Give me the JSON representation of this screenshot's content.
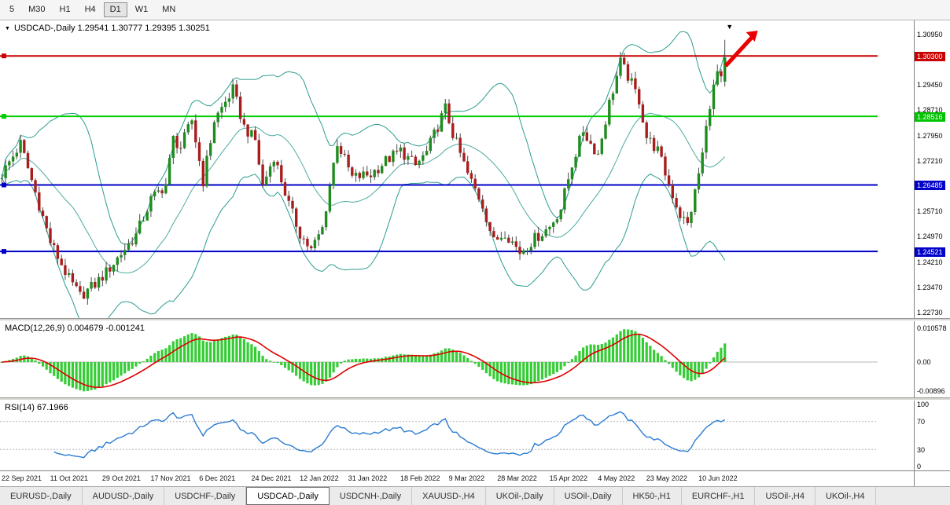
{
  "toolbar": {
    "timeframes": [
      "5",
      "M30",
      "H1",
      "H4",
      "D1",
      "W1",
      "MN"
    ],
    "selected": "D1"
  },
  "icons": {
    "chart_dropdown": "▼",
    "bar_marker": "▼"
  },
  "main_chart": {
    "title_text": "USDCAD-,Daily  1.29541 1.30777 1.29395 1.30251",
    "symbol": "USDCAD-",
    "period": "Daily",
    "ohlc": {
      "open": "1.29541",
      "high": "1.30777",
      "low": "1.29395",
      "close": "1.30251"
    },
    "price_range": {
      "max": 1.3135,
      "min": 1.2255
    },
    "price_axis_ticks": [
      {
        "label": "1.30950",
        "price": 1.3095
      },
      {
        "label": "1.29450",
        "price": 1.2945
      },
      {
        "label": "1.28710",
        "price": 1.2871
      },
      {
        "label": "1.27950",
        "price": 1.2795
      },
      {
        "label": "1.27210",
        "price": 1.2721
      },
      {
        "label": "1.25710",
        "price": 1.2571
      },
      {
        "label": "1.24970",
        "price": 1.2497
      },
      {
        "label": "1.24210",
        "price": 1.2421
      },
      {
        "label": "1.23470",
        "price": 1.2347
      },
      {
        "label": "1.22730",
        "price": 1.2273
      }
    ],
    "hlines": [
      {
        "price": 1.303,
        "label": "1.30300",
        "color": "#c80000",
        "label_bg": "#c80000",
        "label_fg": "#ffffff"
      },
      {
        "price": 1.28516,
        "label": "1.28516",
        "color": "#00ce00",
        "label_bg": "#00c400",
        "label_fg": "#ffffff"
      },
      {
        "price": 1.26485,
        "label": "1.26485",
        "color": "#0000c8",
        "label_bg": "#0000c8",
        "label_fg": "#ffffff"
      },
      {
        "price": 1.24521,
        "label": "1.24521",
        "color": "#0000c8",
        "label_bg": "#0000c8",
        "label_fg": "#ffffff"
      }
    ],
    "trend_arrow": {
      "color": "#ea0000"
    },
    "colors": {
      "bull": "#1e8c1e",
      "bear": "#a81d1d",
      "wick": "#4a4a4a",
      "bollinger": "#2c9c8f"
    }
  },
  "macd_panel": {
    "label": "MACD(12,26,9) 0.004679 -0.001241",
    "axis": [
      {
        "label": "0.010578",
        "value": 0.010578
      },
      {
        "label": "0.00",
        "value": 0
      },
      {
        "label": "-0.00896",
        "value": -0.00896
      }
    ],
    "range": {
      "max": 0.0127,
      "min": -0.011
    },
    "colors": {
      "histogram": "#35cc35",
      "signal": "#dd0000",
      "zero_line": "#b8b8b8"
    }
  },
  "rsi_panel": {
    "label": "RSI(14) 67.1966",
    "axis": [
      {
        "label": "100",
        "value": 100
      },
      {
        "label": "70",
        "value": 70
      },
      {
        "label": "30",
        "value": 30
      },
      {
        "label": "0",
        "value": 0
      }
    ],
    "levels": [
      70,
      30
    ],
    "range": {
      "max": 100,
      "min": 0
    },
    "colors": {
      "line": "#2b7cd3",
      "level": "#b5b5b5"
    }
  },
  "date_axis": {
    "labels": [
      {
        "text": "22 Sep 2021",
        "bar": 0
      },
      {
        "text": "11 Oct 2021",
        "bar": 13
      },
      {
        "text": "29 Oct 2021",
        "bar": 27
      },
      {
        "text": "17 Nov 2021",
        "bar": 40
      },
      {
        "text": "6 Dec 2021",
        "bar": 53
      },
      {
        "text": "24 Dec 2021",
        "bar": 67
      },
      {
        "text": "12 Jan 2022",
        "bar": 80
      },
      {
        "text": "31 Jan 2022",
        "bar": 93
      },
      {
        "text": "18 Feb 2022",
        "bar": 107
      },
      {
        "text": "9 Mar 2022",
        "bar": 120
      },
      {
        "text": "28 Mar 2022",
        "bar": 133
      },
      {
        "text": "15 Apr 2022",
        "bar": 147
      },
      {
        "text": "4 May 2022",
        "bar": 160
      },
      {
        "text": "23 May 2022",
        "bar": 173
      },
      {
        "text": "10 Jun 2022",
        "bar": 187
      }
    ]
  },
  "tabs": [
    {
      "label": "EURUSD-,Daily",
      "selected": false
    },
    {
      "label": "AUDUSD-,Daily",
      "selected": false
    },
    {
      "label": "USDCHF-,Daily",
      "selected": false
    },
    {
      "label": "USDCAD-,Daily",
      "selected": true
    },
    {
      "label": "USDCNH-,Daily",
      "selected": false
    },
    {
      "label": "XAUUSD-,H4",
      "selected": false
    },
    {
      "label": "UKOil-,Daily",
      "selected": false
    },
    {
      "label": "USOil-,Daily",
      "selected": false
    },
    {
      "label": "HK50-,H1",
      "selected": false
    },
    {
      "label": "EURCHF-,H1",
      "selected": false
    },
    {
      "label": "USOil-,H4",
      "selected": false
    },
    {
      "label": "UKOil-,H4",
      "selected": false
    }
  ],
  "chart_data": {
    "type": "candlestick",
    "symbol": "USDCAD",
    "timeframe": "Daily",
    "bar_count": 195,
    "ylim": [
      1.2255,
      1.3135
    ],
    "last_candle": {
      "open": 1.29541,
      "high": 1.30777,
      "low": 1.29395,
      "close": 1.30251
    },
    "volatility": 0.004,
    "price_path": [
      [
        0,
        1.268
      ],
      [
        5,
        1.277
      ],
      [
        10,
        1.259
      ],
      [
        13,
        1.248
      ],
      [
        18,
        1.237
      ],
      [
        21,
        1.232
      ],
      [
        25,
        1.2355
      ],
      [
        28,
        1.239
      ],
      [
        33,
        1.246
      ],
      [
        36,
        1.25
      ],
      [
        40,
        1.2605
      ],
      [
        44,
        1.265
      ],
      [
        46,
        1.2785
      ],
      [
        48,
        1.276
      ],
      [
        51,
        1.284
      ],
      [
        54,
        1.266
      ],
      [
        57,
        1.284
      ],
      [
        62,
        1.293
      ],
      [
        65,
        1.282
      ],
      [
        68,
        1.278
      ],
      [
        70,
        1.2645
      ],
      [
        73,
        1.2735
      ],
      [
        77,
        1.259
      ],
      [
        80,
        1.2505
      ],
      [
        83,
        1.2455
      ],
      [
        86,
        1.252
      ],
      [
        90,
        1.2775
      ],
      [
        94,
        1.267
      ],
      [
        99,
        1.268
      ],
      [
        103,
        1.272
      ],
      [
        107,
        1.275
      ],
      [
        111,
        1.2705
      ],
      [
        114,
        1.2745
      ],
      [
        119,
        1.2875
      ],
      [
        121,
        1.28
      ],
      [
        125,
        1.268
      ],
      [
        129,
        1.259
      ],
      [
        132,
        1.248
      ],
      [
        135,
        1.251
      ],
      [
        139,
        1.245
      ],
      [
        143,
        1.249
      ],
      [
        147,
        1.2525
      ],
      [
        150,
        1.258
      ],
      [
        153,
        1.271
      ],
      [
        156,
        1.281
      ],
      [
        158,
        1.277
      ],
      [
        160,
        1.274
      ],
      [
        163,
        1.289
      ],
      [
        166,
        1.301
      ],
      [
        168,
        1.297
      ],
      [
        171,
        1.29
      ],
      [
        173,
        1.279
      ],
      [
        176,
        1.275
      ],
      [
        179,
        1.265
      ],
      [
        182,
        1.256
      ],
      [
        184,
        1.253
      ],
      [
        186,
        1.2625
      ],
      [
        188,
        1.274
      ],
      [
        190,
        1.289
      ],
      [
        192,
        1.298
      ],
      [
        193,
        1.2954
      ],
      [
        194,
        1.30251
      ]
    ],
    "indicators": {
      "bollinger": {
        "period": 20,
        "deviation": 2
      },
      "macd": {
        "fast": 12,
        "slow": 26,
        "signal": 9,
        "current_main": 0.004679,
        "current_signal": -0.001241
      },
      "rsi": {
        "period": 14,
        "current": 67.1966
      }
    }
  }
}
